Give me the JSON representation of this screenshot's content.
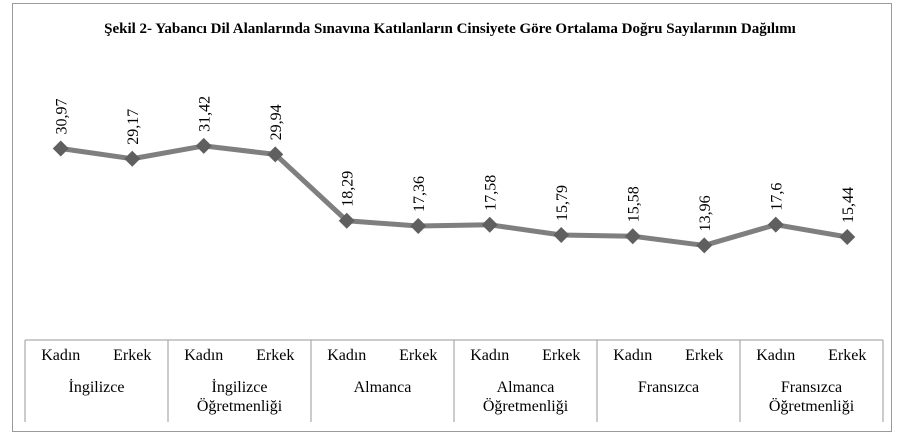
{
  "chart_data": {
    "type": "line",
    "title": "Şekil 2- Yabancı Dil Alanlarında Sınavına Katılanların Cinsiyete Göre Ortalama Doğru Sayılarının Dağılımı",
    "categories": [
      "Kadın",
      "Erkek",
      "Kadın",
      "Erkek",
      "Kadın",
      "Erkek",
      "Kadın",
      "Erkek",
      "Kadın",
      "Erkek",
      "Kadın",
      "Erkek"
    ],
    "groups": [
      "İngilizce",
      "İngilizce Öğretmenliği",
      "Almanca",
      "Almanca Öğretmenliği",
      "Fransızca",
      "Fransızca Öğretmenliği"
    ],
    "series": [
      {
        "color": "#7f7f7f",
        "values": [
          30.97,
          29.17,
          31.42,
          29.94,
          18.29,
          17.36,
          17.58,
          15.79,
          15.58,
          13.96,
          17.6,
          15.44
        ],
        "value_labels": [
          "30,97",
          "29,17",
          "31,42",
          "29,94",
          "18,29",
          "17,36",
          "17,58",
          "15,79",
          "15,58",
          "13,96",
          "17,6",
          "15,44"
        ]
      }
    ],
    "ylim": [
      0,
      45
    ]
  }
}
